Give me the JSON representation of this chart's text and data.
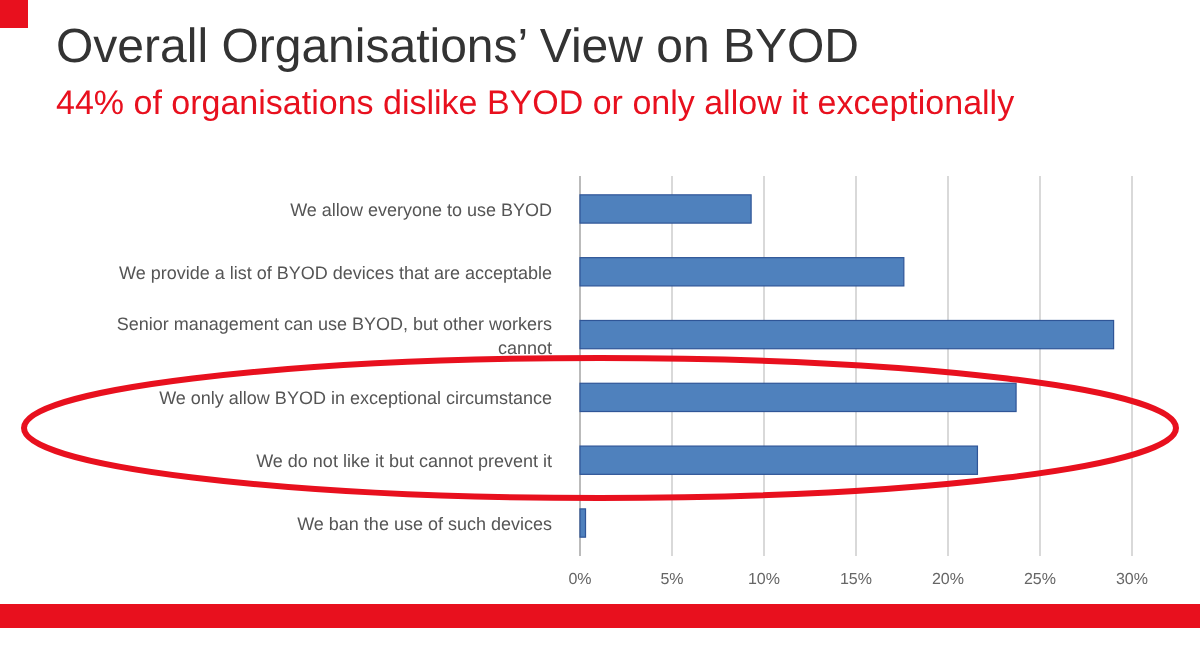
{
  "chart_data": {
    "type": "bar",
    "orientation": "horizontal",
    "title": "Overall Organisations’ View on BYOD",
    "subtitle": "44% of organisations dislike BYOD or only allow it exceptionally",
    "categories": [
      "We allow everyone to use BYOD",
      "We provide a list of BYOD devices that are acceptable",
      "Senior management can use BYOD, but other workers cannot",
      "We only allow BYOD in exceptional circumstance",
      "We do not like it but cannot prevent it",
      "We ban the use of such devices"
    ],
    "values": [
      9.3,
      17.6,
      29,
      23.7,
      21.6,
      0.3
    ],
    "color": "#4f81bd",
    "xlim": [
      0,
      30
    ],
    "xticks": [
      {
        "value": 0,
        "label": "0%"
      },
      {
        "value": 5,
        "label": "5%"
      },
      {
        "value": 10,
        "label": "10%"
      },
      {
        "value": 15,
        "label": "15%"
      },
      {
        "value": 20,
        "label": "20%"
      },
      {
        "value": 25,
        "label": "25%"
      },
      {
        "value": 30,
        "label": "30%"
      }
    ],
    "grid": "x"
  }
}
